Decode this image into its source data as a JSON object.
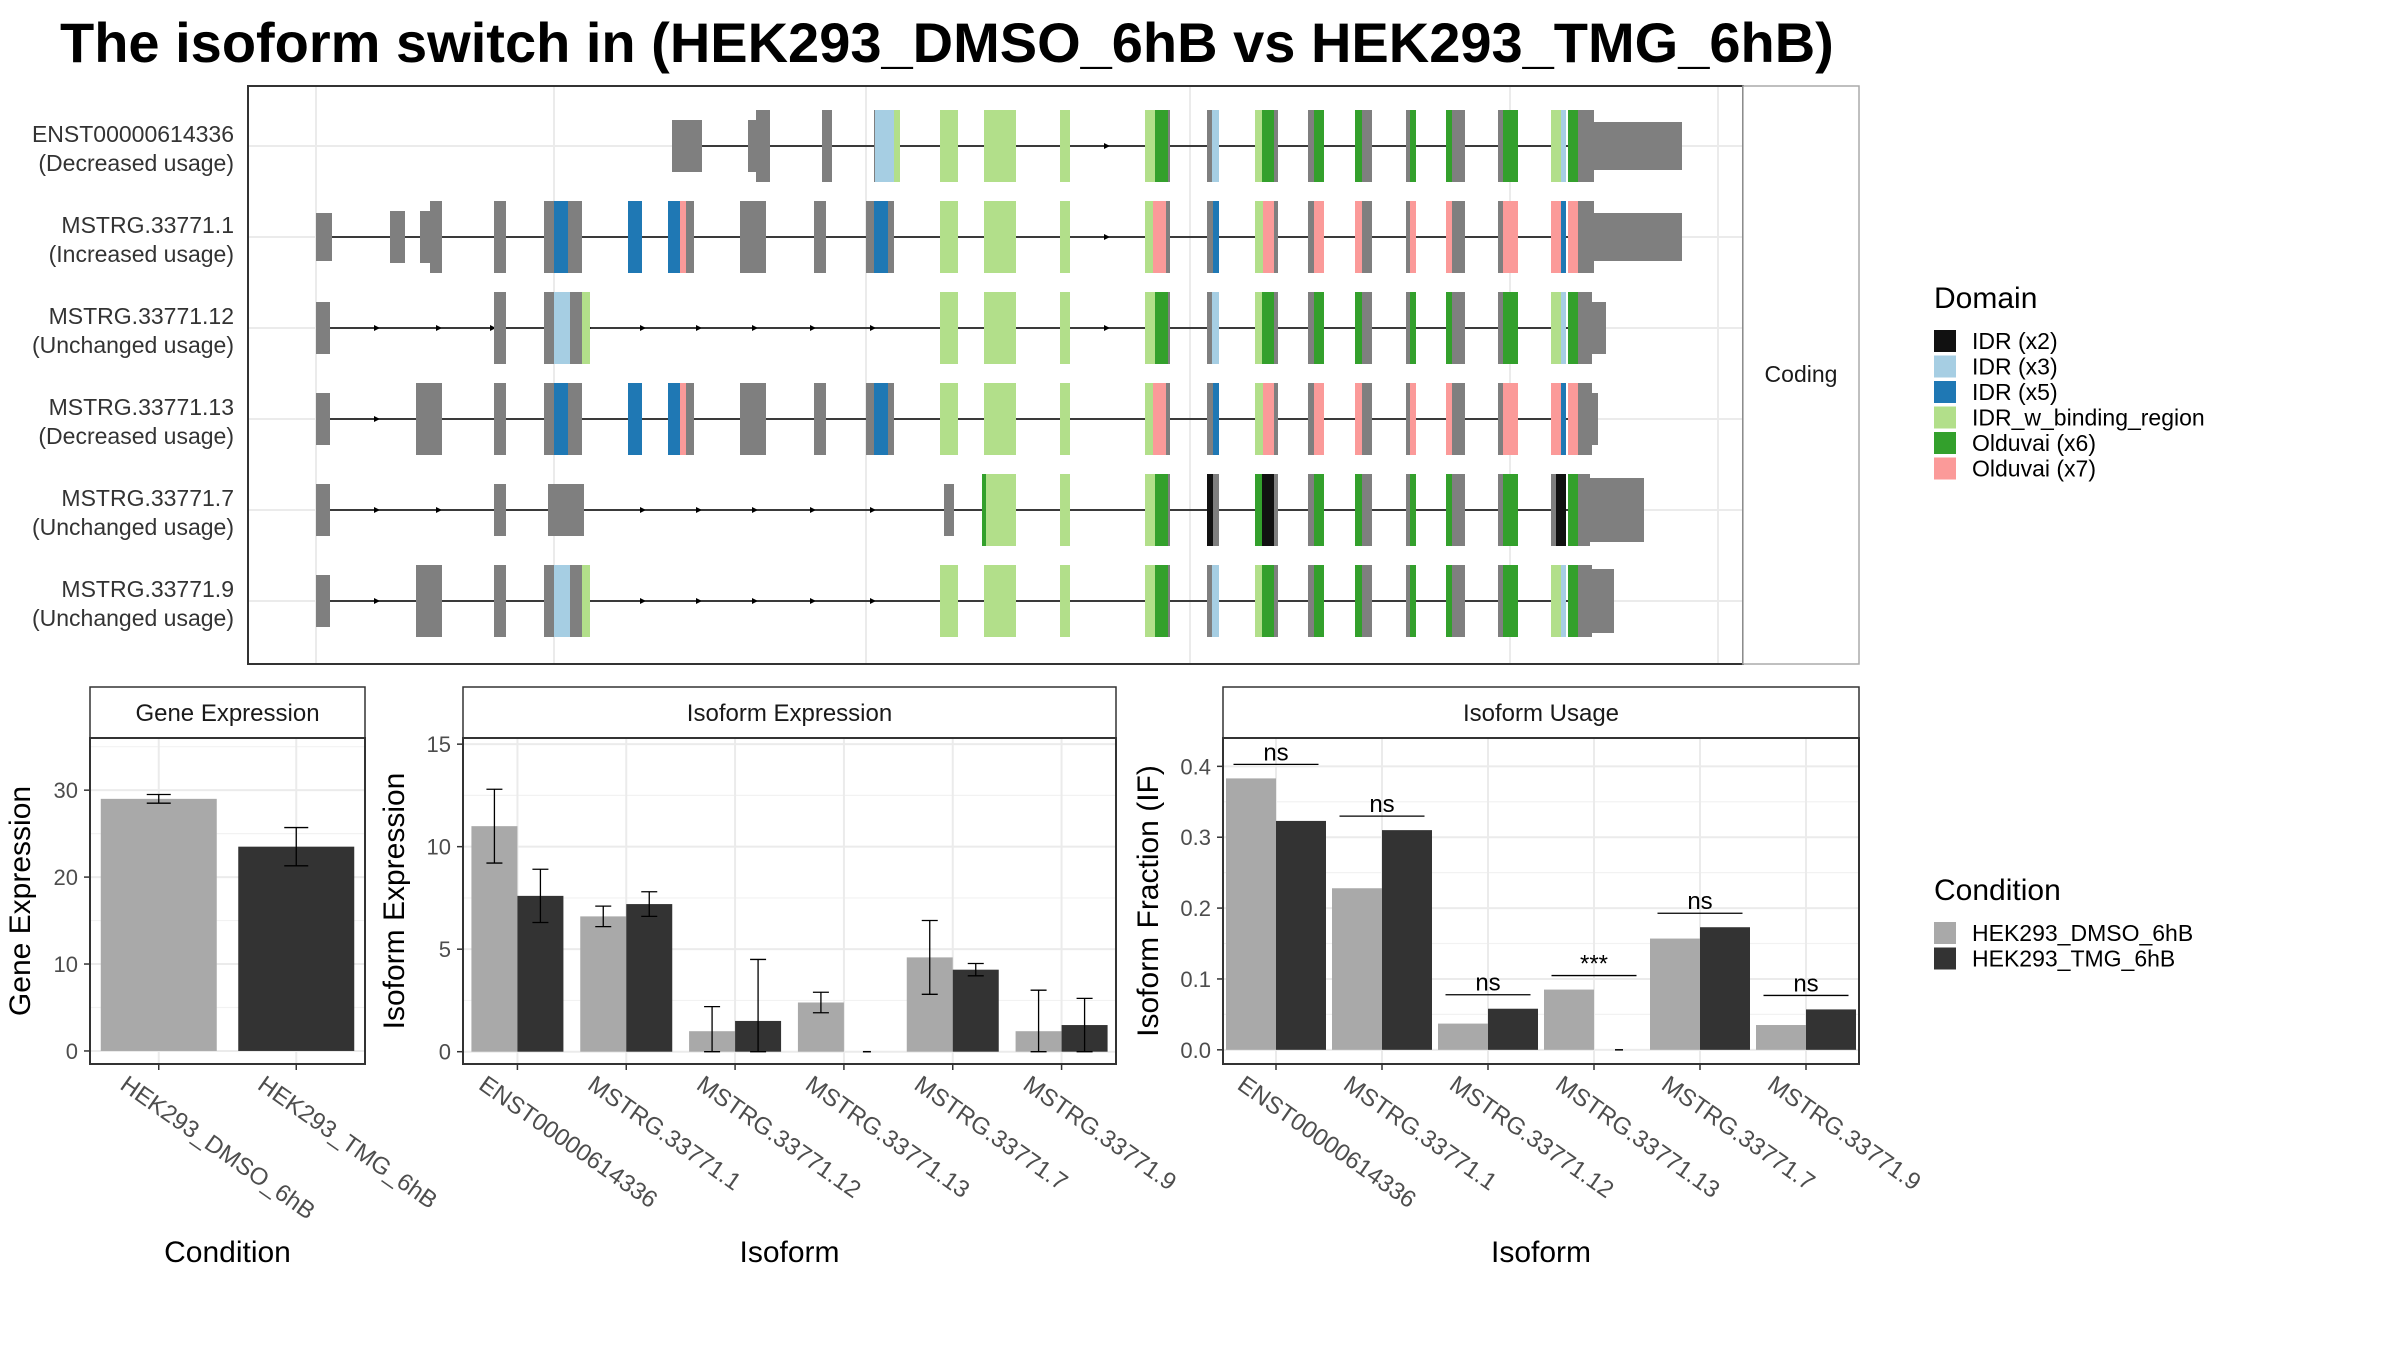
{
  "title": "The isoform switch in  (HEK293_DMSO_6hB vs HEK293_TMG_6hB)",
  "colors": {
    "utr_grey": "#7f7f7f",
    "domain_palette": [
      "#111111",
      "#a6cee3",
      "#1f78b4",
      "#b2df8a",
      "#33a02c",
      "#fb9a99"
    ],
    "cond_dmso": "#a9a9a9",
    "cond_tmg": "#333333"
  },
  "chart_data": [
    {
      "type": "isoform-structure",
      "strip_label": "Coding",
      "isoforms": [
        {
          "id": "ENST00000614336",
          "usage": "(Decreased usage)"
        },
        {
          "id": "MSTRG.33771.1",
          "usage": "(Increased usage)"
        },
        {
          "id": "MSTRG.33771.12",
          "usage": "(Unchanged usage)"
        },
        {
          "id": "MSTRG.33771.13",
          "usage": "(Decreased usage)"
        },
        {
          "id": "MSTRG.33771.7",
          "usage": "(Unchanged usage)"
        },
        {
          "id": "MSTRG.33771.9",
          "usage": "(Unchanged usage)"
        }
      ],
      "legend": {
        "title": "Domain",
        "entries": [
          {
            "name": "IDR (x2)",
            "color": "#111111"
          },
          {
            "name": "IDR (x3)",
            "color": "#a6cee3"
          },
          {
            "name": "IDR (x5)",
            "color": "#1f78b4"
          },
          {
            "name": "IDR_w_binding_region",
            "color": "#b2df8a"
          },
          {
            "name": "Olduvai (x6)",
            "color": "#33a02c"
          },
          {
            "name": "Olduvai (x7)",
            "color": "#fb9a99"
          }
        ]
      }
    },
    {
      "type": "bar",
      "title": "Gene Expression",
      "xlabel": "Condition",
      "ylabel": "Gene Expression",
      "categories": [
        "HEK293_DMSO_6hB",
        "HEK293_TMG_6hB"
      ],
      "values": [
        29.0,
        23.5
      ],
      "errors": [
        [
          28.5,
          29.5
        ],
        [
          21.3,
          25.7
        ]
      ],
      "ylim": [
        -1.5,
        36
      ],
      "yticks": [
        0,
        10,
        20,
        30
      ],
      "tick_labels": [
        "0",
        "10",
        "20",
        "30"
      ]
    },
    {
      "type": "bar",
      "title": "Isoform Expression",
      "xlabel": "Isoform",
      "ylabel": "Isoform Expression",
      "categories": [
        "ENST00000614336",
        "MSTRG.33771.1",
        "MSTRG.33771.12",
        "MSTRG.33771.13",
        "MSTRG.33771.7",
        "MSTRG.33771.9"
      ],
      "series": [
        {
          "name": "HEK293_DMSO_6hB",
          "values": [
            11.0,
            6.6,
            1.0,
            2.4,
            4.6,
            1.0
          ],
          "errors": [
            [
              9.2,
              12.8
            ],
            [
              6.1,
              7.1
            ],
            [
              0.0,
              2.2
            ],
            [
              1.9,
              2.9
            ],
            [
              2.8,
              6.4
            ],
            [
              0.0,
              3.0
            ]
          ]
        },
        {
          "name": "HEK293_TMG_6hB",
          "values": [
            7.6,
            7.2,
            1.5,
            0.0,
            4.0,
            1.3
          ],
          "errors": [
            [
              6.3,
              8.9
            ],
            [
              6.6,
              7.8
            ],
            [
              0.0,
              4.5
            ],
            [
              0.0,
              0.0
            ],
            [
              3.7,
              4.3
            ],
            [
              0.0,
              2.6
            ]
          ]
        }
      ],
      "ylim": [
        -0.6,
        15.3
      ],
      "yticks": [
        0,
        5,
        10,
        15
      ],
      "tick_labels": [
        "0",
        "5",
        "10",
        "15"
      ]
    },
    {
      "type": "bar",
      "title": "Isoform Usage",
      "xlabel": "Isoform",
      "ylabel": "Isoform Fraction (IF)",
      "categories": [
        "ENST00000614336",
        "MSTRG.33771.1",
        "MSTRG.33771.12",
        "MSTRG.33771.13",
        "MSTRG.33771.7",
        "MSTRG.33771.9"
      ],
      "series": [
        {
          "name": "HEK293_DMSO_6hB",
          "values": [
            0.383,
            0.228,
            0.037,
            0.085,
            0.157,
            0.035
          ]
        },
        {
          "name": "HEK293_TMG_6hB",
          "values": [
            0.323,
            0.31,
            0.058,
            0.0,
            0.173,
            0.057
          ]
        }
      ],
      "significance": [
        "ns",
        "ns",
        "ns",
        "***",
        "ns",
        "ns"
      ],
      "ylim": [
        -0.02,
        0.44
      ],
      "yticks": [
        0.0,
        0.1,
        0.2,
        0.3,
        0.4
      ],
      "tick_labels": [
        "0.0",
        "0.1",
        "0.2",
        "0.3",
        "0.4"
      ]
    }
  ],
  "condition_legend": {
    "title": "Condition",
    "entries": [
      {
        "name": "HEK293_DMSO_6hB",
        "color": "#a9a9a9"
      },
      {
        "name": "HEK293_TMG_6hB",
        "color": "#333333"
      }
    ]
  }
}
